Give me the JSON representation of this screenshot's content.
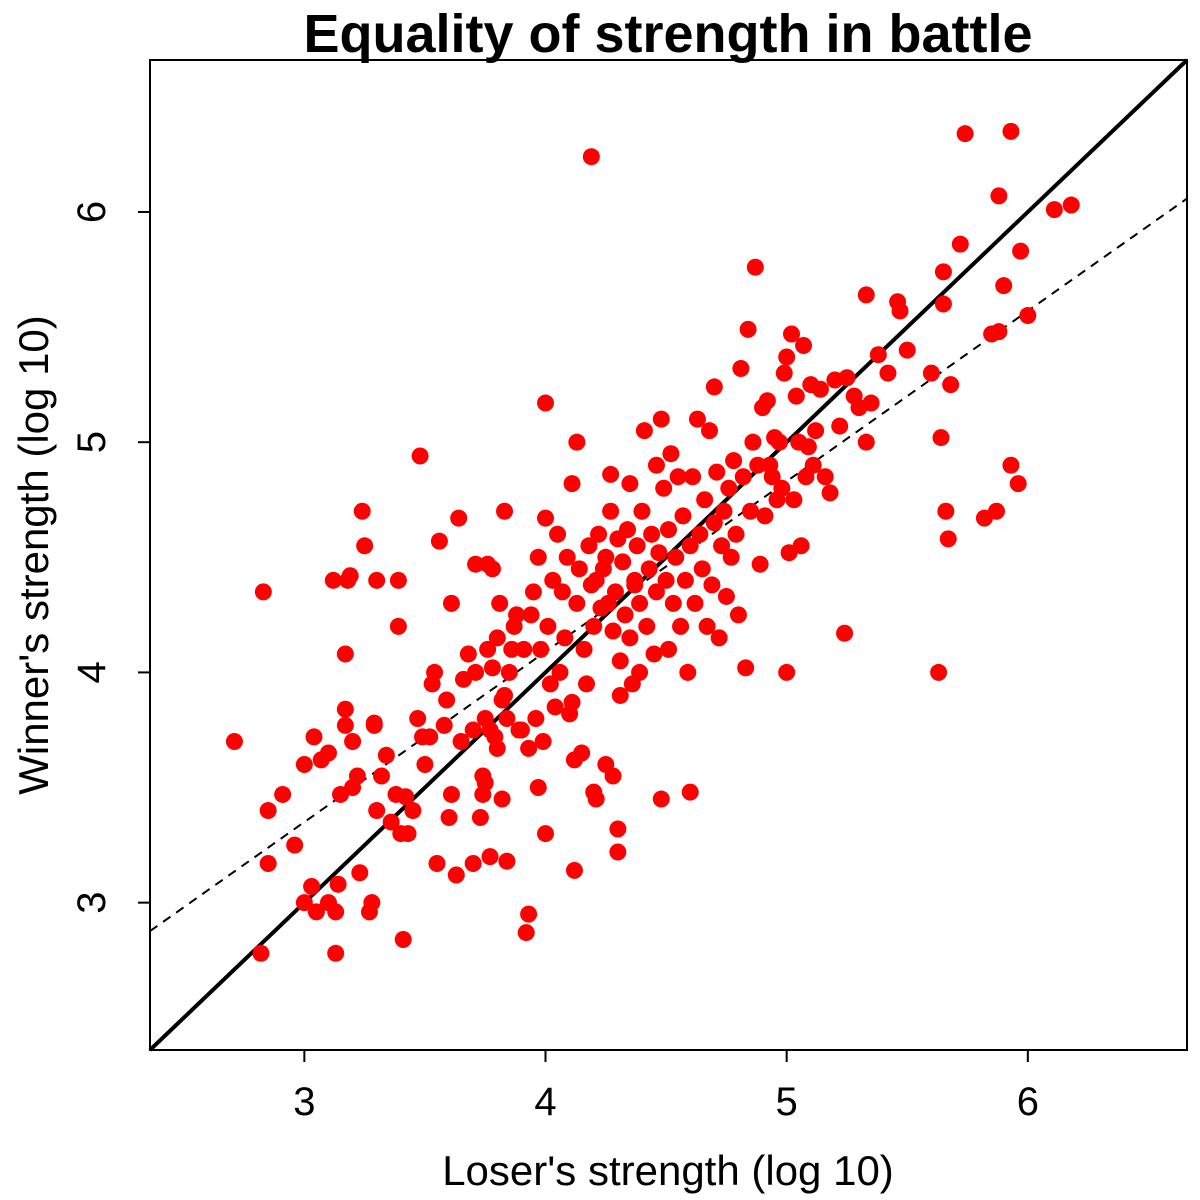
{
  "chart_data": {
    "type": "scatter",
    "title": "Equality of strength in battle",
    "xlabel": "Loser's strength (log 10)",
    "ylabel": "Winner's strength (log 10)",
    "xlim": [
      2.36,
      6.66
    ],
    "ylim": [
      2.36,
      6.66
    ],
    "xticks": [
      3,
      4,
      5,
      6
    ],
    "yticks": [
      3,
      4,
      5,
      6
    ],
    "point_color": "#ff0000",
    "lines": [
      {
        "style": "solid",
        "color": "#000000",
        "slope": 1.0,
        "intercept": 0.0
      },
      {
        "style": "dashed",
        "color": "#000000",
        "slope": 0.74,
        "intercept": 1.13
      }
    ],
    "points": [
      [
        2.71,
        3.7
      ],
      [
        2.82,
        2.78
      ],
      [
        2.83,
        4.35
      ],
      [
        2.85,
        3.17
      ],
      [
        2.85,
        3.4
      ],
      [
        2.91,
        3.47
      ],
      [
        2.96,
        3.25
      ],
      [
        3.0,
        3.0
      ],
      [
        3.0,
        3.6
      ],
      [
        3.03,
        3.07
      ],
      [
        3.04,
        3.72
      ],
      [
        3.05,
        2.96
      ],
      [
        3.07,
        3.62
      ],
      [
        3.1,
        3.0
      ],
      [
        3.1,
        3.65
      ],
      [
        3.12,
        4.4
      ],
      [
        3.13,
        2.96
      ],
      [
        3.13,
        2.78
      ],
      [
        3.14,
        3.08
      ],
      [
        3.15,
        3.47
      ],
      [
        3.17,
        3.77
      ],
      [
        3.17,
        3.84
      ],
      [
        3.17,
        4.08
      ],
      [
        3.18,
        4.4
      ],
      [
        3.19,
        4.42
      ],
      [
        3.2,
        3.5
      ],
      [
        3.2,
        3.7
      ],
      [
        3.22,
        3.55
      ],
      [
        3.23,
        3.13
      ],
      [
        3.24,
        4.7
      ],
      [
        3.25,
        4.55
      ],
      [
        3.27,
        2.96
      ],
      [
        3.28,
        3.0
      ],
      [
        3.29,
        3.78
      ],
      [
        3.29,
        3.77
      ],
      [
        3.3,
        4.4
      ],
      [
        3.3,
        3.4
      ],
      [
        3.32,
        3.55
      ],
      [
        3.34,
        3.64
      ],
      [
        3.36,
        3.35
      ],
      [
        3.38,
        3.47
      ],
      [
        3.39,
        4.4
      ],
      [
        3.39,
        4.2
      ],
      [
        3.4,
        3.3
      ],
      [
        3.41,
        2.84
      ],
      [
        3.42,
        3.46
      ],
      [
        3.43,
        3.3
      ],
      [
        3.45,
        3.4
      ],
      [
        3.47,
        3.8
      ],
      [
        3.48,
        4.94
      ],
      [
        3.49,
        3.72
      ],
      [
        3.5,
        3.6
      ],
      [
        3.52,
        3.72
      ],
      [
        3.53,
        3.95
      ],
      [
        3.54,
        4.0
      ],
      [
        3.55,
        3.17
      ],
      [
        3.56,
        4.57
      ],
      [
        3.58,
        3.77
      ],
      [
        3.59,
        3.88
      ],
      [
        3.6,
        3.37
      ],
      [
        3.61,
        3.47
      ],
      [
        3.61,
        4.3
      ],
      [
        3.63,
        3.12
      ],
      [
        3.64,
        4.67
      ],
      [
        3.65,
        3.7
      ],
      [
        3.66,
        3.97
      ],
      [
        3.68,
        4.08
      ],
      [
        3.7,
        3.17
      ],
      [
        3.7,
        3.75
      ],
      [
        3.71,
        4.0
      ],
      [
        3.71,
        4.47
      ],
      [
        3.73,
        3.37
      ],
      [
        3.74,
        3.47
      ],
      [
        3.74,
        3.55
      ],
      [
        3.75,
        3.52
      ],
      [
        3.75,
        3.8
      ],
      [
        3.76,
        4.1
      ],
      [
        3.76,
        4.47
      ],
      [
        3.77,
        3.2
      ],
      [
        3.77,
        3.75
      ],
      [
        3.78,
        4.02
      ],
      [
        3.78,
        4.45
      ],
      [
        3.79,
        3.72
      ],
      [
        3.8,
        3.67
      ],
      [
        3.8,
        4.15
      ],
      [
        3.81,
        4.3
      ],
      [
        3.82,
        3.45
      ],
      [
        3.82,
        3.88
      ],
      [
        3.83,
        3.9
      ],
      [
        3.83,
        4.7
      ],
      [
        3.84,
        3.18
      ],
      [
        3.84,
        3.8
      ],
      [
        3.85,
        4.0
      ],
      [
        3.86,
        4.1
      ],
      [
        3.87,
        4.2
      ],
      [
        3.88,
        4.25
      ],
      [
        3.89,
        3.75
      ],
      [
        3.9,
        3.75
      ],
      [
        3.91,
        4.1
      ],
      [
        3.92,
        2.87
      ],
      [
        3.93,
        2.95
      ],
      [
        3.93,
        3.67
      ],
      [
        3.94,
        4.25
      ],
      [
        3.95,
        4.35
      ],
      [
        3.96,
        3.8
      ],
      [
        3.97,
        3.5
      ],
      [
        3.97,
        4.5
      ],
      [
        3.98,
        4.1
      ],
      [
        3.99,
        3.7
      ],
      [
        4.0,
        3.3
      ],
      [
        4.0,
        4.67
      ],
      [
        4.0,
        5.17
      ],
      [
        4.01,
        4.2
      ],
      [
        4.02,
        3.95
      ],
      [
        4.03,
        4.4
      ],
      [
        4.04,
        3.85
      ],
      [
        4.05,
        4.6
      ],
      [
        4.06,
        4.0
      ],
      [
        4.07,
        4.35
      ],
      [
        4.08,
        4.15
      ],
      [
        4.09,
        4.5
      ],
      [
        4.1,
        3.82
      ],
      [
        4.11,
        3.87
      ],
      [
        4.11,
        4.82
      ],
      [
        4.12,
        3.14
      ],
      [
        4.12,
        3.62
      ],
      [
        4.13,
        4.3
      ],
      [
        4.13,
        5.0
      ],
      [
        4.14,
        4.45
      ],
      [
        4.15,
        3.65
      ],
      [
        4.16,
        4.1
      ],
      [
        4.17,
        3.95
      ],
      [
        4.18,
        4.55
      ],
      [
        4.19,
        4.38
      ],
      [
        4.19,
        6.24
      ],
      [
        4.2,
        3.48
      ],
      [
        4.2,
        4.2
      ],
      [
        4.21,
        3.45
      ],
      [
        4.21,
        4.4
      ],
      [
        4.22,
        4.6
      ],
      [
        4.23,
        4.28
      ],
      [
        4.24,
        4.45
      ],
      [
        4.25,
        3.6
      ],
      [
        4.25,
        4.5
      ],
      [
        4.26,
        4.3
      ],
      [
        4.27,
        4.7
      ],
      [
        4.27,
        4.86
      ],
      [
        4.28,
        4.18
      ],
      [
        4.28,
        3.55
      ],
      [
        4.29,
        4.35
      ],
      [
        4.3,
        3.22
      ],
      [
        4.3,
        3.32
      ],
      [
        4.3,
        4.58
      ],
      [
        4.31,
        4.05
      ],
      [
        4.31,
        3.9
      ],
      [
        4.32,
        4.48
      ],
      [
        4.33,
        4.25
      ],
      [
        4.34,
        4.62
      ],
      [
        4.35,
        4.15
      ],
      [
        4.35,
        4.82
      ],
      [
        4.36,
        3.95
      ],
      [
        4.37,
        4.38
      ],
      [
        4.37,
        4.4
      ],
      [
        4.38,
        4.55
      ],
      [
        4.39,
        4.0
      ],
      [
        4.39,
        4.3
      ],
      [
        4.4,
        4.7
      ],
      [
        4.41,
        5.05
      ],
      [
        4.42,
        4.2
      ],
      [
        4.43,
        4.45
      ],
      [
        4.44,
        4.6
      ],
      [
        4.45,
        4.08
      ],
      [
        4.46,
        4.9
      ],
      [
        4.46,
        4.35
      ],
      [
        4.47,
        4.52
      ],
      [
        4.48,
        3.45
      ],
      [
        4.48,
        5.1
      ],
      [
        4.49,
        4.8
      ],
      [
        4.5,
        4.4
      ],
      [
        4.51,
        4.62
      ],
      [
        4.51,
        4.1
      ],
      [
        4.52,
        4.95
      ],
      [
        4.53,
        4.3
      ],
      [
        4.54,
        4.5
      ],
      [
        4.55,
        4.85
      ],
      [
        4.56,
        4.2
      ],
      [
        4.57,
        4.68
      ],
      [
        4.58,
        4.4
      ],
      [
        4.59,
        4.0
      ],
      [
        4.6,
        3.48
      ],
      [
        4.6,
        4.55
      ],
      [
        4.61,
        4.85
      ],
      [
        4.62,
        4.3
      ],
      [
        4.63,
        5.1
      ],
      [
        4.64,
        4.6
      ],
      [
        4.65,
        4.45
      ],
      [
        4.66,
        4.75
      ],
      [
        4.67,
        4.2
      ],
      [
        4.68,
        5.05
      ],
      [
        4.69,
        4.38
      ],
      [
        4.7,
        4.65
      ],
      [
        4.7,
        5.24
      ],
      [
        4.71,
        4.87
      ],
      [
        4.72,
        4.15
      ],
      [
        4.73,
        4.55
      ],
      [
        4.74,
        4.7
      ],
      [
        4.75,
        4.33
      ],
      [
        4.76,
        4.8
      ],
      [
        4.77,
        4.5
      ],
      [
        4.78,
        4.92
      ],
      [
        4.79,
        4.6
      ],
      [
        4.8,
        4.25
      ],
      [
        4.81,
        5.32
      ],
      [
        4.82,
        4.85
      ],
      [
        4.83,
        4.02
      ],
      [
        4.84,
        5.49
      ],
      [
        4.85,
        4.7
      ],
      [
        4.86,
        5.0
      ],
      [
        4.87,
        5.76
      ],
      [
        4.88,
        4.9
      ],
      [
        4.89,
        4.47
      ],
      [
        4.9,
        5.15
      ],
      [
        4.91,
        4.68
      ],
      [
        4.92,
        5.18
      ],
      [
        4.93,
        4.9
      ],
      [
        4.94,
        4.85
      ],
      [
        4.95,
        5.02
      ],
      [
        4.96,
        4.75
      ],
      [
        4.97,
        5.0
      ],
      [
        4.98,
        4.8
      ],
      [
        4.99,
        5.3
      ],
      [
        5.0,
        4.0
      ],
      [
        5.0,
        5.37
      ],
      [
        5.01,
        4.52
      ],
      [
        5.02,
        5.47
      ],
      [
        5.03,
        4.75
      ],
      [
        5.04,
        5.2
      ],
      [
        5.05,
        5.0
      ],
      [
        5.06,
        4.55
      ],
      [
        5.07,
        5.42
      ],
      [
        5.08,
        4.85
      ],
      [
        5.09,
        4.98
      ],
      [
        5.1,
        5.25
      ],
      [
        5.11,
        4.9
      ],
      [
        5.12,
        5.05
      ],
      [
        5.14,
        5.23
      ],
      [
        5.16,
        4.85
      ],
      [
        5.18,
        4.78
      ],
      [
        5.2,
        5.27
      ],
      [
        5.22,
        5.07
      ],
      [
        5.24,
        4.17
      ],
      [
        5.25,
        5.28
      ],
      [
        5.28,
        5.2
      ],
      [
        5.3,
        5.15
      ],
      [
        5.33,
        5.0
      ],
      [
        5.33,
        5.64
      ],
      [
        5.35,
        5.17
      ],
      [
        5.38,
        5.38
      ],
      [
        5.42,
        5.3
      ],
      [
        5.46,
        5.61
      ],
      [
        5.47,
        5.57
      ],
      [
        5.5,
        5.4
      ],
      [
        5.6,
        5.3
      ],
      [
        5.63,
        4.0
      ],
      [
        5.64,
        5.02
      ],
      [
        5.65,
        5.6
      ],
      [
        5.65,
        5.74
      ],
      [
        5.66,
        4.7
      ],
      [
        5.67,
        4.58
      ],
      [
        5.68,
        5.25
      ],
      [
        5.72,
        5.86
      ],
      [
        5.74,
        6.34
      ],
      [
        5.82,
        4.67
      ],
      [
        5.85,
        5.47
      ],
      [
        5.87,
        4.7
      ],
      [
        5.88,
        5.48
      ],
      [
        5.88,
        6.07
      ],
      [
        5.9,
        5.68
      ],
      [
        5.93,
        4.9
      ],
      [
        5.93,
        6.35
      ],
      [
        5.96,
        4.82
      ],
      [
        5.97,
        5.83
      ],
      [
        6.0,
        5.55
      ],
      [
        6.11,
        6.01
      ],
      [
        6.18,
        6.03
      ]
    ]
  }
}
